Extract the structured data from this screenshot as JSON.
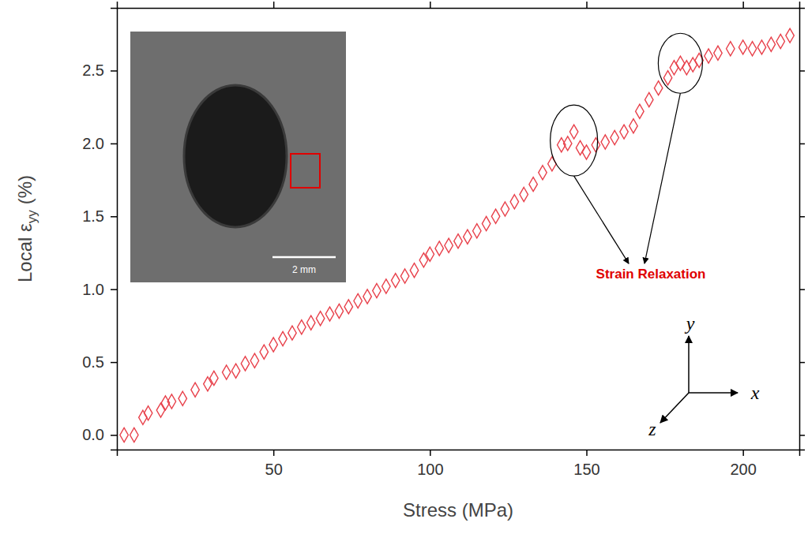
{
  "chart_data": {
    "type": "scatter",
    "xlabel": "Stress (MPa)",
    "ylabel": {
      "main": "Local ε",
      "subscript": "yy",
      "unit": "(%)"
    },
    "x": [
      2.3,
      5.5,
      8.3,
      10,
      14,
      15.5,
      17.5,
      21,
      25,
      29,
      31,
      35,
      38,
      41,
      44,
      47,
      50,
      53,
      56,
      59,
      62,
      65,
      68,
      71,
      74,
      77,
      80,
      83,
      86,
      89,
      92,
      95,
      98,
      100,
      103,
      106,
      109,
      112,
      115,
      118,
      121,
      124,
      127,
      130,
      133,
      136,
      139,
      142,
      144,
      146,
      148,
      150,
      153,
      156,
      159,
      162,
      165,
      167,
      170,
      173,
      176,
      178,
      180,
      182,
      184,
      186,
      189,
      192,
      196,
      200,
      203,
      206,
      209,
      212,
      215
    ],
    "values": [
      0,
      0,
      0.12,
      0.15,
      0.17,
      0.22,
      0.23,
      0.25,
      0.31,
      0.35,
      0.39,
      0.43,
      0.44,
      0.49,
      0.51,
      0.57,
      0.62,
      0.66,
      0.7,
      0.74,
      0.77,
      0.8,
      0.83,
      0.85,
      0.88,
      0.92,
      0.95,
      0.99,
      1.02,
      1.06,
      1.09,
      1.13,
      1.2,
      1.24,
      1.28,
      1.3,
      1.33,
      1.36,
      1.4,
      1.45,
      1.5,
      1.55,
      1.6,
      1.65,
      1.72,
      1.8,
      1.86,
      1.99,
      2.0,
      2.08,
      1.97,
      1.94,
      1.99,
      2.01,
      2.04,
      2.08,
      2.12,
      2.22,
      2.3,
      2.38,
      2.45,
      2.52,
      2.55,
      2.52,
      2.54,
      2.57,
      2.6,
      2.62,
      2.65,
      2.66,
      2.65,
      2.66,
      2.68,
      2.7,
      2.74
    ],
    "color": "#e8414b",
    "marker": "diamond",
    "xlim": [
      0,
      218
    ],
    "xticks": [
      50,
      100,
      150,
      200
    ],
    "ylim": [
      -0.1,
      2.93
    ],
    "yticks": [
      {
        "value": 0,
        "label": "0.0"
      },
      0.5,
      {
        "value": 1,
        "label": "1.0"
      },
      1.5,
      {
        "value": 2,
        "label": "2.0"
      },
      2.5
    ],
    "annotation": {
      "text": "Strain Relaxation",
      "color": "#e00000",
      "points": [
        [
          146,
          2.02
        ],
        [
          180,
          2.55
        ]
      ]
    },
    "inset": {
      "scale_bar": "2 mm"
    },
    "axes_triad": [
      "x",
      "y",
      "z"
    ]
  }
}
